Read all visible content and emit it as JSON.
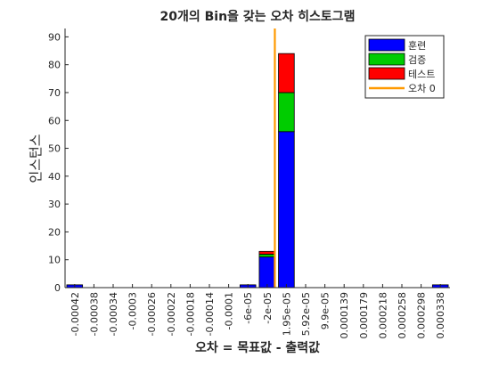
{
  "chart_data": {
    "type": "bar",
    "stacked": true,
    "title": "20개의 Bin을 갖는 오차 히스토그램",
    "xlabel": "오차 = 목표값 - 출력값",
    "ylabel": "인스턴스",
    "ylim": [
      0,
      93
    ],
    "yticks": [
      0,
      10,
      20,
      30,
      40,
      50,
      60,
      70,
      80,
      90
    ],
    "categories": [
      "-0.00042",
      "-0.00038",
      "-0.00034",
      "-0.0003",
      "-0.00026",
      "-0.00022",
      "-0.00018",
      "-0.00014",
      "-0.0001",
      "-6e-05",
      "-2e-05",
      "1.95e-05",
      "5.92e-05",
      "9.9e-05",
      "0.000139",
      "0.000179",
      "0.000218",
      "0.000258",
      "0.000298",
      "0.000338"
    ],
    "series": [
      {
        "name": "훈련",
        "color": "#0000ff",
        "values": [
          1,
          0,
          0,
          0,
          0,
          0,
          0,
          0,
          0,
          1,
          11,
          56,
          0,
          0,
          0,
          0,
          0,
          0,
          0,
          1
        ]
      },
      {
        "name": "검증",
        "color": "#00cc00",
        "values": [
          0,
          0,
          0,
          0,
          0,
          0,
          0,
          0,
          0,
          0,
          1,
          14,
          0,
          0,
          0,
          0,
          0,
          0,
          0,
          0
        ]
      },
      {
        "name": "테스트",
        "color": "#ff0000",
        "values": [
          0,
          0,
          0,
          0,
          0,
          0,
          0,
          0,
          0,
          0,
          1,
          14,
          0,
          0,
          0,
          0,
          0,
          0,
          0,
          0
        ]
      }
    ],
    "zero_error_line": {
      "name": "오차 0",
      "color": "#ff9900",
      "x": 0
    },
    "legend_position": "top-right",
    "grid": false
  }
}
